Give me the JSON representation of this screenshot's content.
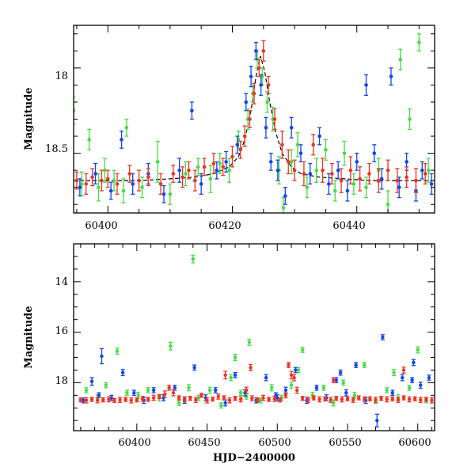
{
  "colors": {
    "green": "#44dd44",
    "blue": "#1144ee",
    "red": "#ee3322",
    "model": "#000000"
  },
  "chart_data": [
    {
      "type": "scatter",
      "title": "",
      "xlabel": "",
      "ylabel": "Magnitude",
      "xlim": [
        60394.5,
        60452.5
      ],
      "ylim": [
        18.85,
        17.75
      ],
      "y_inverted": true,
      "x_ticks": [
        "60400",
        "60420",
        "60440"
      ],
      "y_ticks": [
        "18",
        "18.5"
      ],
      "series": [
        {
          "color_key": "green",
          "x": [
            60394.5,
            60395.8,
            60397.0,
            60398.5,
            60399.5,
            60401.0,
            60402.5,
            60403.0,
            60405.5,
            60408.0,
            60410.0,
            60412.5,
            60414.5,
            60416.5,
            60418.0,
            60419.5,
            60421.0,
            60422.5,
            60423.3,
            60424.0,
            60424.8,
            60425.6,
            60426.5,
            60427.5,
            60428.2,
            60429.5,
            60430.5,
            60432.0,
            60433.5,
            60435.0,
            60436.5,
            60438.0,
            60439.5,
            60441.5,
            60443.5,
            60445.0,
            60447.0,
            60448.5,
            60450.0,
            60451.5
          ],
          "y": [
            18.25,
            18.68,
            18.42,
            18.7,
            18.6,
            18.66,
            18.72,
            18.35,
            18.7,
            18.55,
            18.74,
            18.62,
            18.58,
            18.65,
            18.56,
            18.6,
            18.42,
            18.3,
            18.15,
            17.95,
            18.05,
            18.2,
            18.3,
            18.6,
            18.82,
            18.55,
            18.45,
            18.7,
            18.6,
            18.48,
            18.72,
            18.5,
            18.68,
            18.7,
            18.6,
            18.8,
            17.95,
            18.3,
            17.85,
            18.6
          ],
          "err": [
            0.08,
            0.07,
            0.06,
            0.08,
            0.07,
            0.06,
            0.07,
            0.05,
            0.06,
            0.12,
            0.06,
            0.07,
            0.05,
            0.08,
            0.06,
            0.07,
            0.05,
            0.06,
            0.05,
            0.05,
            0.05,
            0.06,
            0.07,
            0.08,
            0.06,
            0.07,
            0.07,
            0.06,
            0.07,
            0.06,
            0.06,
            0.07,
            0.06,
            0.06,
            0.07,
            0.08,
            0.06,
            0.06,
            0.05,
            0.07
          ]
        },
        {
          "color_key": "blue",
          "x": [
            60395.5,
            60398.0,
            60400.5,
            60402.2,
            60404.0,
            60406.5,
            60409.0,
            60411.5,
            60413.5,
            60415.0,
            60417.5,
            60419.0,
            60420.8,
            60422.2,
            60423.0,
            60423.8,
            60424.6,
            60425.4,
            60426.2,
            60427.3,
            60428.5,
            60429.5,
            60431.0,
            60432.5,
            60434.0,
            60435.5,
            60437.0,
            60438.5,
            60440.0,
            60441.5,
            60442.8,
            60444.0,
            60445.5,
            60446.8,
            60448.0,
            60449.5,
            60450.5,
            60452.0
          ],
          "y": [
            18.7,
            18.62,
            18.72,
            18.42,
            18.68,
            18.62,
            18.74,
            18.6,
            18.25,
            18.68,
            18.6,
            18.55,
            18.45,
            18.2,
            18.05,
            17.9,
            18.1,
            18.35,
            18.55,
            18.6,
            18.75,
            18.35,
            18.5,
            18.62,
            18.4,
            18.68,
            18.6,
            18.72,
            18.55,
            18.1,
            18.5,
            18.65,
            18.05,
            18.7,
            18.55,
            18.72,
            18.6,
            18.68
          ],
          "err": [
            0.05,
            0.06,
            0.05,
            0.05,
            0.06,
            0.06,
            0.05,
            0.07,
            0.05,
            0.06,
            0.05,
            0.06,
            0.05,
            0.05,
            0.06,
            0.05,
            0.06,
            0.06,
            0.05,
            0.06,
            0.05,
            0.06,
            0.05,
            0.06,
            0.05,
            0.06,
            0.05,
            0.06,
            0.05,
            0.06,
            0.05,
            0.06,
            0.05,
            0.06,
            0.05,
            0.06,
            0.05,
            0.06
          ]
        },
        {
          "color_key": "red",
          "x": [
            60395.0,
            60396.5,
            60397.5,
            60399.0,
            60400.0,
            60401.5,
            60403.5,
            60405.0,
            60406.5,
            60408.5,
            60410.5,
            60412.0,
            60413.0,
            60414.0,
            60415.5,
            60417.0,
            60418.5,
            60420.0,
            60421.3,
            60422.0,
            60422.8,
            60423.5,
            60424.3,
            60425.0,
            60425.8,
            60426.8,
            60428.0,
            60429.0,
            60430.0,
            60431.5,
            60433.0,
            60434.5,
            60436.0,
            60437.5,
            60439.0,
            60440.5,
            60442.0,
            60443.5,
            60445.0,
            60446.5,
            60448.0,
            60449.5,
            60451.0
          ],
          "y": [
            18.66,
            18.68,
            18.64,
            18.66,
            18.65,
            18.68,
            18.62,
            18.66,
            18.64,
            18.68,
            18.62,
            18.64,
            18.6,
            18.66,
            18.58,
            18.56,
            18.58,
            18.52,
            18.48,
            18.4,
            18.3,
            18.15,
            18.0,
            17.9,
            18.1,
            18.3,
            18.45,
            18.55,
            18.6,
            18.62,
            18.45,
            18.6,
            18.62,
            18.66,
            18.6,
            18.65,
            18.62,
            18.66,
            18.6,
            18.66,
            18.64,
            18.66,
            18.62
          ],
          "err": [
            0.05,
            0.06,
            0.05,
            0.06,
            0.05,
            0.06,
            0.05,
            0.06,
            0.05,
            0.06,
            0.05,
            0.06,
            0.05,
            0.06,
            0.05,
            0.06,
            0.05,
            0.06,
            0.05,
            0.06,
            0.05,
            0.06,
            0.05,
            0.06,
            0.05,
            0.06,
            0.08,
            0.07,
            0.06,
            0.07,
            0.06,
            0.07,
            0.06,
            0.07,
            0.08,
            0.07,
            0.06,
            0.07,
            0.06,
            0.07,
            0.06,
            0.07,
            0.06
          ]
        }
      ],
      "model": {
        "color_key": "model",
        "x": [
          60394.5,
          60400,
          60405,
          60410,
          60414,
          60417,
          60419.5,
          60421,
          60422,
          60423,
          60423.8,
          60424.5,
          60425.2,
          60426,
          60427,
          60428,
          60429.5,
          60431,
          60434,
          60438,
          60442,
          60446,
          60450,
          60452.5
        ],
        "y": [
          18.66,
          18.66,
          18.66,
          18.65,
          18.64,
          18.62,
          18.58,
          18.52,
          18.42,
          18.25,
          18.05,
          17.93,
          18.02,
          18.2,
          18.38,
          18.5,
          18.58,
          18.62,
          18.64,
          18.65,
          18.66,
          18.66,
          18.66,
          18.66
        ]
      }
    },
    {
      "type": "scatter",
      "title": "",
      "xlabel": "HJD−2400000",
      "ylabel": "Magnitude",
      "xlim": [
        60355,
        60612
      ],
      "ylim": [
        19.9,
        12.5
      ],
      "y_inverted": true,
      "x_ticks": [
        "60400",
        "60450",
        "60500",
        "60550",
        "60600"
      ],
      "y_ticks": [
        "14",
        "16",
        "18"
      ],
      "series": [
        {
          "color_key": "green",
          "x": [
            60364,
            60372,
            60378,
            60386,
            60393,
            60401,
            60408,
            60416,
            60424,
            60430,
            60437,
            60444,
            60452,
            60460,
            60467,
            60474,
            60480,
            60488,
            60496,
            60503,
            60510,
            60518,
            60525,
            60533,
            60540,
            60547,
            60555,
            60562,
            60570,
            60578,
            60586,
            60594,
            60600,
            60606,
            60440,
            60470,
            60515,
            60583,
            60478,
            60597
          ],
          "y": [
            18.3,
            18.6,
            18.1,
            16.75,
            18.4,
            18.5,
            18.3,
            18.6,
            16.55,
            18.8,
            18.2,
            18.6,
            18.3,
            18.9,
            17.8,
            18.4,
            16.4,
            18.7,
            18.2,
            18.6,
            18.1,
            16.7,
            18.5,
            18.2,
            18.8,
            18.0,
            18.5,
            17.3,
            18.7,
            18.3,
            18.6,
            18.2,
            16.7,
            18.7,
            13.1,
            17.0,
            17.5,
            17.6,
            18.55,
            17.2
          ],
          "err": [
            0.1,
            0.12,
            0.1,
            0.12,
            0.1,
            0.12,
            0.1,
            0.12,
            0.15,
            0.1,
            0.12,
            0.1,
            0.12,
            0.1,
            0.12,
            0.1,
            0.12,
            0.1,
            0.12,
            0.1,
            0.12,
            0.1,
            0.12,
            0.1,
            0.12,
            0.1,
            0.12,
            0.1,
            0.12,
            0.1,
            0.12,
            0.1,
            0.12,
            0.1,
            0.15,
            0.12,
            0.1,
            0.12,
            0.1,
            0.12
          ]
        },
        {
          "color_key": "blue",
          "x": [
            60362,
            60368,
            60373,
            60375,
            60382,
            60390,
            60398,
            60405,
            60412,
            60419,
            60427,
            60434,
            60441,
            60449,
            60456,
            60463,
            60470,
            60477,
            60485,
            60492,
            60499,
            60506,
            60513,
            60521,
            60528,
            60535,
            60542,
            60549,
            60556,
            60563,
            60571,
            60575,
            60582,
            60589,
            60596,
            60602,
            60608,
            60500,
            60545,
            60597
          ],
          "y": [
            18.7,
            17.95,
            18.5,
            16.95,
            18.6,
            17.6,
            18.4,
            18.7,
            18.3,
            18.6,
            18.2,
            18.7,
            17.4,
            18.6,
            18.3,
            18.8,
            17.7,
            18.4,
            18.7,
            17.8,
            18.5,
            18.3,
            17.5,
            18.7,
            18.2,
            18.6,
            17.9,
            18.4,
            17.3,
            18.7,
            19.5,
            16.2,
            18.4,
            17.8,
            17.9,
            18.1,
            17.8,
            18.6,
            17.6,
            17.2
          ],
          "err": [
            0.1,
            0.15,
            0.1,
            0.3,
            0.1,
            0.12,
            0.1,
            0.12,
            0.1,
            0.12,
            0.1,
            0.12,
            0.1,
            0.12,
            0.1,
            0.12,
            0.1,
            0.12,
            0.1,
            0.12,
            0.1,
            0.12,
            0.1,
            0.12,
            0.1,
            0.12,
            0.1,
            0.12,
            0.1,
            0.12,
            0.25,
            0.1,
            0.1,
            0.12,
            0.1,
            0.12,
            0.1,
            0.12,
            0.1,
            0.12
          ]
        },
        {
          "color_key": "red",
          "x": [
            60360,
            60364,
            60368,
            60372,
            60376,
            60380,
            60384,
            60388,
            60392,
            60396,
            60400,
            60404,
            60408,
            60412,
            60416,
            60420,
            60423,
            60426,
            60430,
            60434,
            60438,
            60442,
            60446,
            60450,
            60454,
            60458,
            60462,
            60466,
            60470,
            60474,
            60478,
            60482,
            60486,
            60490,
            60494,
            60498,
            60502,
            60506,
            60510,
            60514,
            60518,
            60522,
            60526,
            60530,
            60534,
            60538,
            60542,
            60546,
            60550,
            60554,
            60558,
            60562,
            60566,
            60570,
            60574,
            60578,
            60582,
            60586,
            60590,
            60594,
            60598,
            60602,
            60606,
            60610,
            60463,
            60481,
            60508,
            60512,
            60540,
            60590
          ],
          "y": [
            18.68,
            18.7,
            18.66,
            18.7,
            18.68,
            18.66,
            18.7,
            18.68,
            18.66,
            18.7,
            18.68,
            18.64,
            18.66,
            18.6,
            18.55,
            18.45,
            18.2,
            18.4,
            18.6,
            18.66,
            18.62,
            18.68,
            18.5,
            18.7,
            18.65,
            18.55,
            18.6,
            18.7,
            18.62,
            18.66,
            18.3,
            18.62,
            18.68,
            18.6,
            18.66,
            18.64,
            18.68,
            18.5,
            17.7,
            18.3,
            18.62,
            18.68,
            18.6,
            18.66,
            18.64,
            18.68,
            18.62,
            18.66,
            18.64,
            18.68,
            18.6,
            18.66,
            18.64,
            18.68,
            18.62,
            18.66,
            18.64,
            18.68,
            18.6,
            18.66,
            18.64,
            18.68,
            18.66,
            18.7,
            17.7,
            17.4,
            17.3,
            17.8,
            17.9,
            17.5
          ],
          "err": [
            0.08,
            0.1,
            0.08,
            0.1,
            0.08,
            0.1,
            0.08,
            0.1,
            0.08,
            0.1,
            0.08,
            0.1,
            0.08,
            0.1,
            0.08,
            0.12,
            0.1,
            0.12,
            0.08,
            0.1,
            0.08,
            0.1,
            0.08,
            0.1,
            0.08,
            0.1,
            0.08,
            0.1,
            0.08,
            0.1,
            0.12,
            0.1,
            0.08,
            0.1,
            0.08,
            0.1,
            0.08,
            0.1,
            0.15,
            0.12,
            0.08,
            0.1,
            0.08,
            0.1,
            0.08,
            0.1,
            0.08,
            0.1,
            0.08,
            0.1,
            0.08,
            0.1,
            0.08,
            0.1,
            0.08,
            0.1,
            0.08,
            0.1,
            0.08,
            0.1,
            0.08,
            0.1,
            0.08,
            0.1,
            0.15,
            0.12,
            0.1,
            0.12,
            0.1,
            0.12
          ]
        }
      ]
    }
  ]
}
